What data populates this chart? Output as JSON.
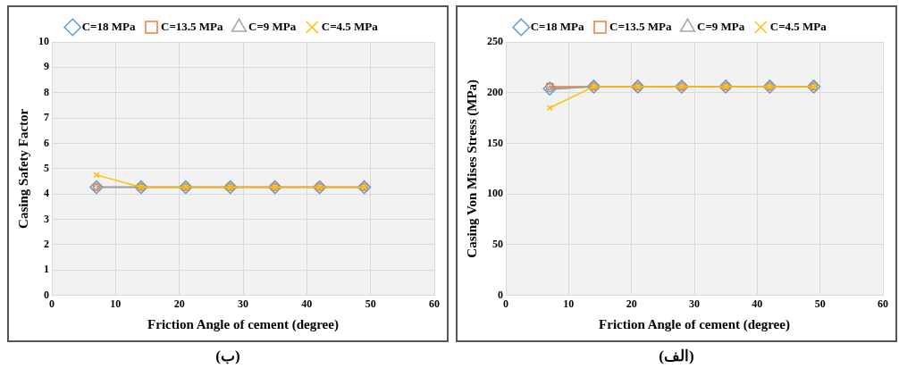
{
  "chart_data": [
    {
      "type": "line",
      "xlabel": "Friction Angle of cement (degree)",
      "ylabel": "Casing Safety Factor",
      "x": [
        7,
        14,
        21,
        28,
        35,
        42,
        49
      ],
      "series": [
        {
          "name": "C=18 MPa",
          "color": "#5b9bd5",
          "marker": "diamond",
          "values": [
            4.27,
            4.27,
            4.27,
            4.27,
            4.27,
            4.27,
            4.27
          ]
        },
        {
          "name": "C=13.5 MPa",
          "color": "#ed7d31",
          "marker": "square",
          "values": [
            4.27,
            4.27,
            4.27,
            4.27,
            4.27,
            4.27,
            4.27
          ]
        },
        {
          "name": "C=9 MPa",
          "color": "#a5a5a5",
          "marker": "triangle",
          "values": [
            4.27,
            4.27,
            4.27,
            4.27,
            4.27,
            4.27,
            4.27
          ]
        },
        {
          "name": "C=4.5 MPa",
          "color": "#ffc000",
          "marker": "cross",
          "values": [
            4.75,
            4.27,
            4.27,
            4.27,
            4.27,
            4.27,
            4.27
          ]
        }
      ],
      "xlim": [
        0,
        60
      ],
      "xticks": [
        0,
        10,
        20,
        30,
        40,
        50,
        60
      ],
      "ylim": [
        0,
        10
      ],
      "yticks": [
        0,
        1,
        2,
        3,
        4,
        5,
        6,
        7,
        8,
        9,
        10
      ],
      "grid": true,
      "legend": "top",
      "annotations": [
        "(ب)"
      ]
    },
    {
      "type": "line",
      "xlabel": "Friction Angle of cement (degree)",
      "ylabel": "Casing Von Mises Stress (MPa)",
      "x": [
        7,
        14,
        21,
        28,
        35,
        42,
        49
      ],
      "series": [
        {
          "name": "C=18 MPa",
          "color": "#5b9bd5",
          "marker": "diamond",
          "values": [
            204,
            206,
            206,
            206,
            206,
            206,
            206
          ]
        },
        {
          "name": "C=13.5 MPa",
          "color": "#ed7d31",
          "marker": "square",
          "values": [
            206,
            206,
            206,
            206,
            206,
            206,
            206
          ]
        },
        {
          "name": "C=9 MPa",
          "color": "#a5a5a5",
          "marker": "triangle",
          "values": [
            203,
            206,
            206,
            206,
            206,
            206,
            206
          ]
        },
        {
          "name": "C=4.5 MPa",
          "color": "#ffc000",
          "marker": "cross",
          "values": [
            185,
            206,
            206,
            206,
            206,
            206,
            206
          ]
        }
      ],
      "xlim": [
        0,
        60
      ],
      "xticks": [
        0,
        10,
        20,
        30,
        40,
        50,
        60
      ],
      "ylim": [
        0,
        250
      ],
      "yticks": [
        0,
        50,
        100,
        150,
        200,
        250
      ],
      "grid": true,
      "legend": "top",
      "annotations": [
        "(الف)"
      ]
    }
  ]
}
